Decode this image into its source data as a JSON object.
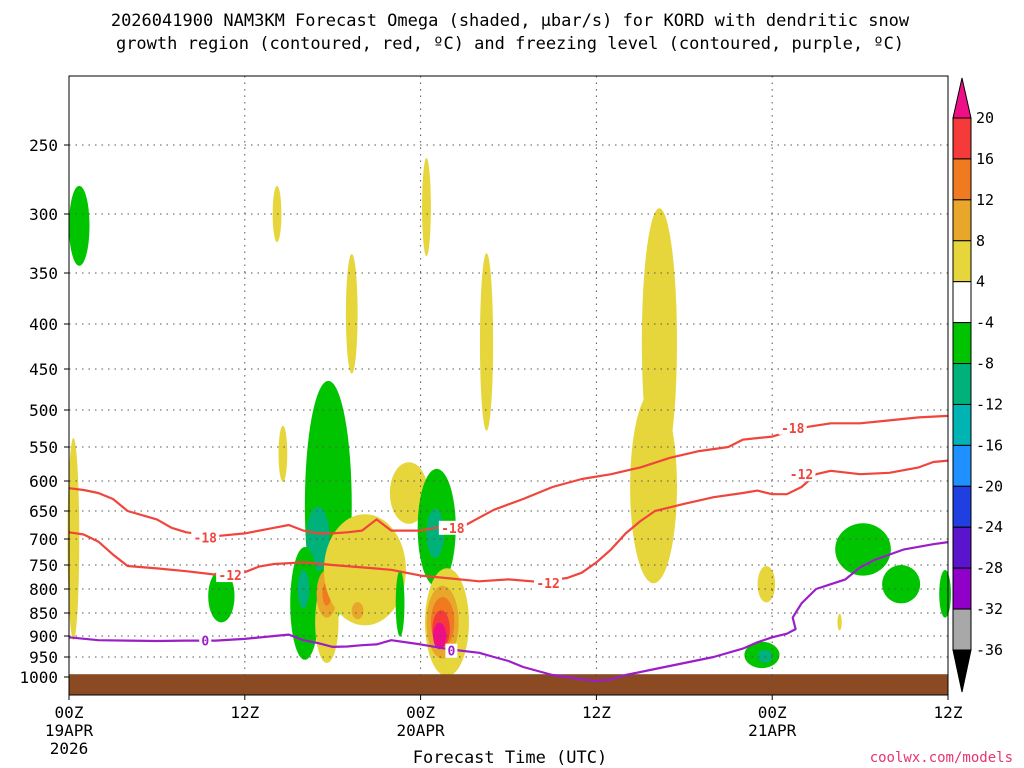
{
  "chart_data": {
    "type": "heatmap",
    "title_line1": "2026041900 NAM3KM Forecast Omega (shaded, μbar/s) for KORD with dendritic snow",
    "title_line2": "growth region (contoured, red, ºC) and freezing level (contoured, purple, ºC)",
    "xlabel": "Forecast Time (UTC)",
    "ylabel": "",
    "watermark": "coolwx.com/models",
    "x_unit": "forecast hours",
    "xlim": [
      0,
      60
    ],
    "ylim": [
      1010,
      200
    ],
    "y_ticks": [
      250,
      300,
      350,
      400,
      450,
      500,
      550,
      600,
      650,
      700,
      750,
      800,
      850,
      900,
      950,
      1000
    ],
    "x_ticks": [
      {
        "hour": 0,
        "label": "00Z",
        "date": "19APR",
        "year": "2026"
      },
      {
        "hour": 12,
        "label": "12Z",
        "date": "",
        "year": ""
      },
      {
        "hour": 24,
        "label": "00Z",
        "date": "20APR",
        "year": ""
      },
      {
        "hour": 36,
        "label": "12Z",
        "date": "",
        "year": ""
      },
      {
        "hour": 48,
        "label": "00Z",
        "date": "21APR",
        "year": ""
      },
      {
        "hour": 60,
        "label": "12Z",
        "date": "",
        "year": ""
      }
    ],
    "grid": true,
    "colorbar": {
      "labels": [
        "20",
        "16",
        "12",
        "8",
        "4",
        "-4",
        "-8",
        "-12",
        "-16",
        "-20",
        "-24",
        "-28",
        "-32",
        "-36"
      ],
      "colors": [
        "#ee0f86",
        "#f53a3a",
        "#f07a20",
        "#e8a72a",
        "#e6d63c",
        "#ffffff",
        "#00c400",
        "#00b27a",
        "#00b4b4",
        "#1e90ff",
        "#1f3fe0",
        "#5a14cc",
        "#9000c8",
        "#a8a8a8",
        "#000000"
      ]
    },
    "contours": [
      {
        "name": "dgz_top",
        "color": "#f0453c",
        "label": "-18",
        "label_positions": [
          {
            "hour": 9.3,
            "p": 697
          },
          {
            "hour": 26.2,
            "p": 680
          },
          {
            "hour": 49.4,
            "p": 524
          }
        ],
        "points": [
          [
            0,
            612
          ],
          [
            1,
            615
          ],
          [
            2,
            620
          ],
          [
            3,
            630
          ],
          [
            4,
            650
          ],
          [
            6,
            665
          ],
          [
            7,
            680
          ],
          [
            8,
            688
          ],
          [
            10,
            695
          ],
          [
            12,
            690
          ],
          [
            14,
            680
          ],
          [
            15,
            675
          ],
          [
            16,
            685
          ],
          [
            17,
            690
          ],
          [
            18,
            690
          ],
          [
            19,
            688
          ],
          [
            20,
            685
          ],
          [
            21,
            665
          ],
          [
            22,
            685
          ],
          [
            24,
            685
          ],
          [
            25,
            680
          ],
          [
            27,
            676
          ],
          [
            28,
            662
          ],
          [
            29,
            648
          ],
          [
            31,
            630
          ],
          [
            33,
            610
          ],
          [
            35,
            597
          ],
          [
            37,
            590
          ],
          [
            39,
            580
          ],
          [
            41,
            566
          ],
          [
            43,
            556
          ],
          [
            45,
            550
          ],
          [
            46,
            540
          ],
          [
            48,
            536
          ],
          [
            50,
            524
          ],
          [
            52,
            518
          ],
          [
            54,
            518
          ],
          [
            56,
            514
          ],
          [
            58,
            510
          ],
          [
            60,
            508
          ]
        ]
      },
      {
        "name": "dgz_bottom",
        "color": "#f0453c",
        "label": "-12",
        "label_positions": [
          {
            "hour": 11.0,
            "p": 771
          },
          {
            "hour": 32.7,
            "p": 787
          },
          {
            "hour": 50.0,
            "p": 590
          }
        ],
        "points": [
          [
            0,
            688
          ],
          [
            1,
            692
          ],
          [
            2,
            705
          ],
          [
            3,
            730
          ],
          [
            4,
            752
          ],
          [
            6,
            757
          ],
          [
            8,
            763
          ],
          [
            10,
            770
          ],
          [
            12,
            765
          ],
          [
            13,
            753
          ],
          [
            14,
            748
          ],
          [
            16,
            745
          ],
          [
            18,
            750
          ],
          [
            20,
            755
          ],
          [
            22,
            760
          ],
          [
            24,
            772
          ],
          [
            26,
            778
          ],
          [
            28,
            784
          ],
          [
            30,
            780
          ],
          [
            32,
            785
          ],
          [
            34,
            777
          ],
          [
            35,
            766
          ],
          [
            36,
            745
          ],
          [
            37,
            720
          ],
          [
            38,
            690
          ],
          [
            39,
            668
          ],
          [
            40,
            650
          ],
          [
            42,
            638
          ],
          [
            44,
            627
          ],
          [
            46,
            620
          ],
          [
            47,
            616
          ],
          [
            48,
            622
          ],
          [
            49,
            622
          ],
          [
            50,
            610
          ],
          [
            51,
            590
          ],
          [
            52,
            585
          ],
          [
            54,
            590
          ],
          [
            56,
            588
          ],
          [
            58,
            580
          ],
          [
            59,
            572
          ],
          [
            60,
            570
          ]
        ]
      },
      {
        "name": "freezing_level",
        "color": "#9b1fc8",
        "label": "0",
        "label_positions": [
          {
            "hour": 9.3,
            "p": 911
          },
          {
            "hour": 26.1,
            "p": 935
          }
        ],
        "points": [
          [
            0,
            903
          ],
          [
            2,
            910
          ],
          [
            4,
            911
          ],
          [
            6,
            912
          ],
          [
            8,
            911
          ],
          [
            10,
            911
          ],
          [
            12,
            907
          ],
          [
            14,
            900
          ],
          [
            15,
            897
          ],
          [
            16,
            910
          ],
          [
            17,
            917
          ],
          [
            18,
            926
          ],
          [
            19,
            925
          ],
          [
            20,
            922
          ],
          [
            21,
            920
          ],
          [
            22,
            910
          ],
          [
            24,
            920
          ],
          [
            26,
            932
          ],
          [
            28,
            940
          ],
          [
            29,
            950
          ],
          [
            30,
            960
          ],
          [
            31,
            975
          ],
          [
            32,
            985
          ],
          [
            33,
            995
          ],
          [
            34,
            1000
          ],
          [
            35,
            1003
          ],
          [
            36,
            1005
          ],
          [
            37,
            1003
          ],
          [
            38,
            995
          ],
          [
            40,
            980
          ],
          [
            42,
            965
          ],
          [
            44,
            950
          ],
          [
            46,
            930
          ],
          [
            47,
            915
          ],
          [
            48,
            903
          ],
          [
            49,
            895
          ],
          [
            49.6,
            885
          ],
          [
            49.4,
            860
          ],
          [
            50,
            830
          ],
          [
            51,
            800
          ],
          [
            52,
            790
          ],
          [
            53,
            780
          ],
          [
            54,
            755
          ],
          [
            55,
            740
          ],
          [
            56,
            730
          ],
          [
            57,
            720
          ],
          [
            58,
            715
          ],
          [
            59,
            710
          ],
          [
            60,
            706
          ]
        ]
      }
    ],
    "omega_regions": [
      {
        "category": "-8",
        "hour": 0.7,
        "p": 310,
        "dh": 0.7,
        "dp": 32
      },
      {
        "category": "4",
        "hour": 0.3,
        "p": 700,
        "dh": 0.4,
        "dp": 180
      },
      {
        "category": "4",
        "hour": 14.2,
        "p": 300,
        "dh": 0.3,
        "dp": 22
      },
      {
        "category": "4",
        "hour": 19.3,
        "p": 390,
        "dh": 0.4,
        "dp": 60
      },
      {
        "category": "4",
        "hour": 14.6,
        "p": 560,
        "dh": 0.3,
        "dp": 40
      },
      {
        "category": "-8",
        "hour": 10.4,
        "p": 815,
        "dh": 0.9,
        "dp": 55
      },
      {
        "category": "-8",
        "hour": 17.7,
        "p": 640,
        "dh": 1.6,
        "dp": 200
      },
      {
        "category": "-12",
        "hour": 17.0,
        "p": 700,
        "dh": 0.8,
        "dp": 60
      },
      {
        "category": "-8",
        "hour": 16.1,
        "p": 830,
        "dh": 1.0,
        "dp": 120
      },
      {
        "category": "-12",
        "hour": 16.0,
        "p": 800,
        "dh": 0.4,
        "dp": 40
      },
      {
        "category": "4",
        "hour": 17.6,
        "p": 870,
        "dh": 0.8,
        "dp": 90
      },
      {
        "category": "8",
        "hour": 17.6,
        "p": 810,
        "dh": 0.7,
        "dp": 50
      },
      {
        "category": "12",
        "hour": 17.6,
        "p": 810,
        "dh": 0.3,
        "dp": 25
      },
      {
        "category": "4",
        "hour": 20.2,
        "p": 760,
        "dh": 2.8,
        "dp": 110
      },
      {
        "category": "8",
        "hour": 19.7,
        "p": 845,
        "dh": 0.4,
        "dp": 18
      },
      {
        "category": "4",
        "hour": 23.2,
        "p": 620,
        "dh": 1.3,
        "dp": 50
      },
      {
        "category": "-8",
        "hour": 22.6,
        "p": 830,
        "dh": 0.3,
        "dp": 70
      },
      {
        "category": "-8",
        "hour": 25.1,
        "p": 680,
        "dh": 1.3,
        "dp": 105
      },
      {
        "category": "-12",
        "hour": 25.0,
        "p": 690,
        "dh": 0.6,
        "dp": 45
      },
      {
        "category": "4",
        "hour": 24.4,
        "p": 295,
        "dh": 0.3,
        "dp": 38
      },
      {
        "category": "4",
        "hour": 25.8,
        "p": 870,
        "dh": 1.5,
        "dp": 120
      },
      {
        "category": "8",
        "hour": 25.5,
        "p": 870,
        "dh": 1.1,
        "dp": 80
      },
      {
        "category": "12",
        "hour": 25.5,
        "p": 870,
        "dh": 0.8,
        "dp": 55
      },
      {
        "category": "16",
        "hour": 25.4,
        "p": 885,
        "dh": 0.6,
        "dp": 42
      },
      {
        "category": "20",
        "hour": 25.3,
        "p": 900,
        "dh": 0.45,
        "dp": 30
      },
      {
        "category": "4",
        "hour": 28.5,
        "p": 420,
        "dh": 0.45,
        "dp": 95
      },
      {
        "category": "4",
        "hour": 40.3,
        "p": 420,
        "dh": 1.2,
        "dp": 140
      },
      {
        "category": "4",
        "hour": 39.9,
        "p": 610,
        "dh": 1.6,
        "dp": 150
      },
      {
        "category": "4",
        "hour": 47.6,
        "p": 790,
        "dh": 0.6,
        "dp": 38
      },
      {
        "category": "4",
        "hour": 52.6,
        "p": 870,
        "dh": 0.15,
        "dp": 18
      },
      {
        "category": "-8",
        "hour": 47.3,
        "p": 945,
        "dh": 1.2,
        "dp": 32
      },
      {
        "category": "-12",
        "hour": 47.5,
        "p": 948,
        "dh": 0.5,
        "dp": 16
      },
      {
        "category": "-8",
        "hour": 54.2,
        "p": 720,
        "dh": 1.9,
        "dp": 50
      },
      {
        "category": "-8",
        "hour": 56.8,
        "p": 790,
        "dh": 1.3,
        "dp": 40
      },
      {
        "category": "-8",
        "hour": 59.8,
        "p": 810,
        "dh": 0.4,
        "dp": 50
      }
    ]
  }
}
